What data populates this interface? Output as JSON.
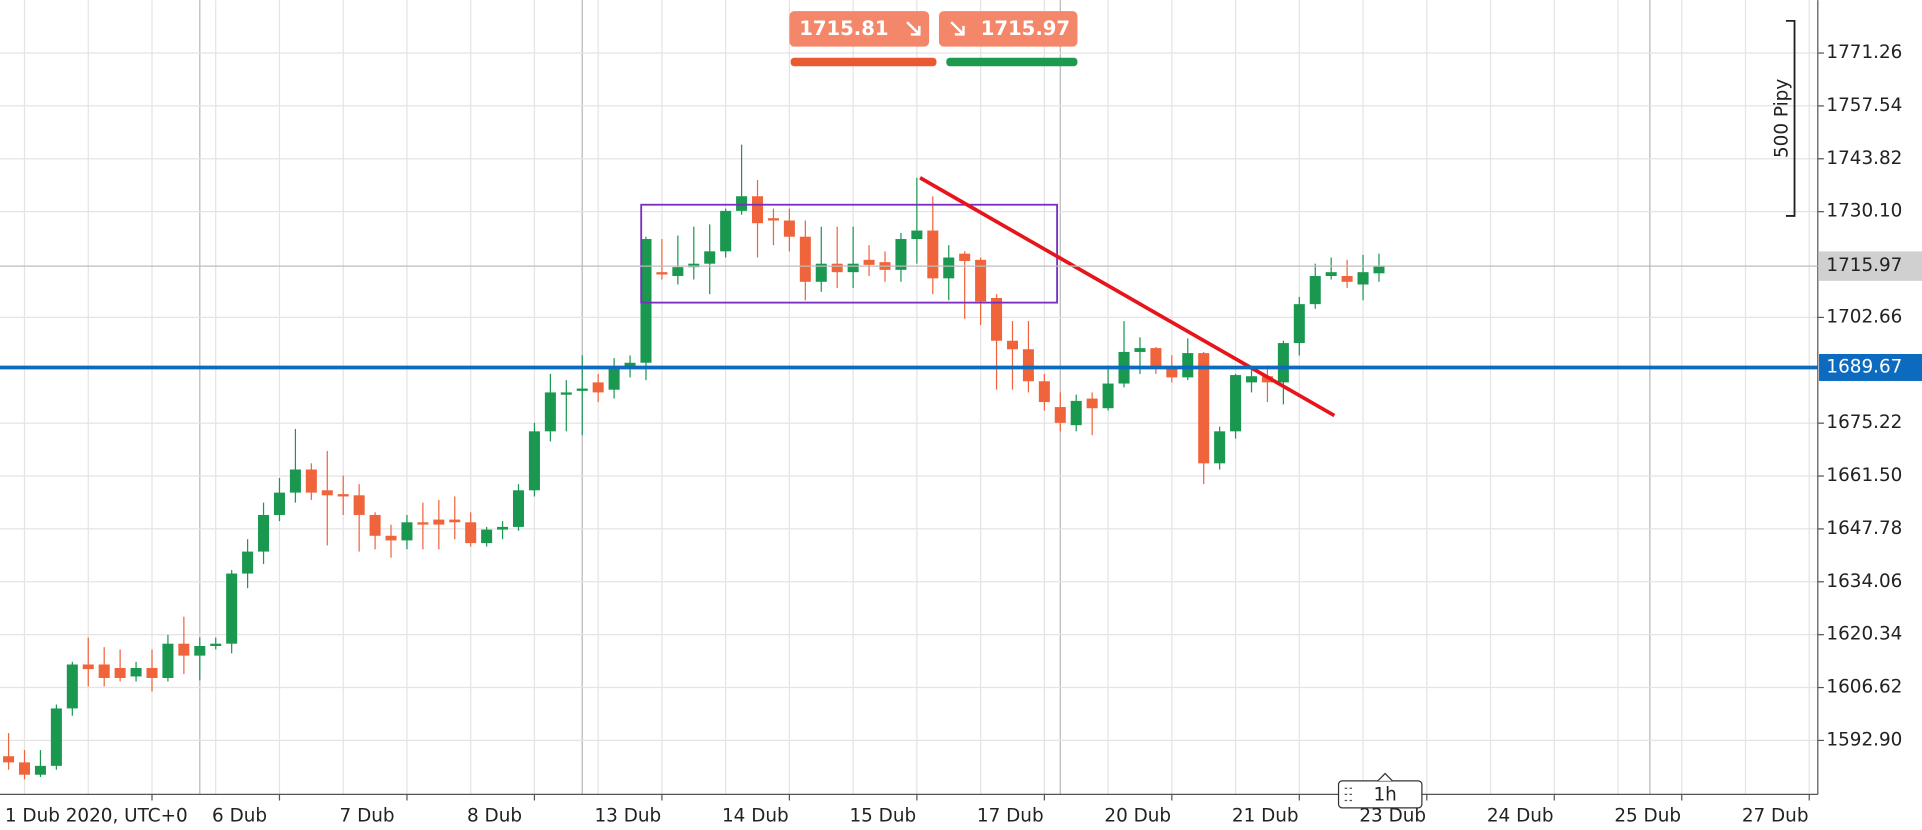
{
  "chart_data": {
    "type": "candlestick",
    "categories": [
      "1 Dub 2020, UTC+0",
      null,
      null,
      null,
      null,
      null,
      null,
      null,
      null,
      null,
      null,
      null,
      null,
      "6 Dub",
      null,
      null,
      null,
      null,
      null,
      null,
      null,
      "7 Dub",
      null,
      null,
      null,
      null,
      null,
      null,
      null,
      "8 Dub",
      null,
      null,
      null,
      null,
      null,
      null,
      null,
      "13 Dub",
      null,
      null,
      null,
      null,
      null,
      null,
      null,
      "14 Dub",
      null,
      null,
      null,
      null,
      null,
      null,
      null,
      "15 Dub",
      null,
      null,
      null,
      null,
      null,
      null,
      null,
      "17 Dub",
      null,
      null,
      null,
      null,
      null,
      null,
      null,
      "20 Dub",
      null,
      null,
      null,
      null,
      null,
      null,
      null,
      "21 Dub",
      null,
      null,
      null,
      null,
      null,
      null,
      null,
      "23 Dub",
      null,
      null,
      null,
      null,
      null,
      null,
      null,
      "24 Dub",
      null,
      null,
      null,
      null,
      null,
      null,
      null,
      "25 Dub",
      null,
      null,
      null,
      null,
      null,
      null,
      null,
      "27 Dub",
      null,
      null,
      null
    ],
    "values": [
      [
        1588.8,
        1594.8,
        1585.3,
        1587.2
      ],
      [
        1587.2,
        1590.4,
        1582.8,
        1584.0
      ],
      [
        1584.0,
        1590.4,
        1583.4,
        1586.3
      ],
      [
        1586.3,
        1602.2,
        1585.3,
        1601.2
      ],
      [
        1601.2,
        1613.3,
        1599.3,
        1612.6
      ],
      [
        1612.6,
        1619.6,
        1606.9,
        1611.4
      ],
      [
        1612.6,
        1617.1,
        1606.9,
        1609.1
      ],
      [
        1611.7,
        1616.5,
        1608.2,
        1609.1
      ],
      [
        1609.5,
        1613.3,
        1608.2,
        1611.7
      ],
      [
        1611.7,
        1616.5,
        1605.6,
        1609.1
      ],
      [
        1609.1,
        1620.3,
        1608.2,
        1618.0
      ],
      [
        1618.0,
        1625.0,
        1610.1,
        1614.9
      ],
      [
        1614.9,
        1619.6,
        1608.5,
        1617.4
      ],
      [
        1617.4,
        1619.6,
        1616.5,
        1618.0
      ],
      [
        1618.0,
        1637.1,
        1615.5,
        1636.2
      ],
      [
        1636.2,
        1645.1,
        1632.4,
        1641.9
      ],
      [
        1641.9,
        1654.6,
        1638.7,
        1651.4
      ],
      [
        1651.4,
        1661.0,
        1649.8,
        1657.2
      ],
      [
        1657.2,
        1673.7,
        1654.6,
        1663.2
      ],
      [
        1663.2,
        1664.8,
        1655.3,
        1657.2
      ],
      [
        1657.8,
        1668.0,
        1643.5,
        1656.5
      ],
      [
        1656.8,
        1661.6,
        1651.4,
        1656.2
      ],
      [
        1656.5,
        1659.4,
        1641.9,
        1651.4
      ],
      [
        1651.4,
        1652.1,
        1642.5,
        1646.0
      ],
      [
        1646.0,
        1648.9,
        1640.3,
        1644.8
      ],
      [
        1644.8,
        1651.4,
        1642.5,
        1649.5
      ],
      [
        1649.5,
        1654.6,
        1642.5,
        1648.9
      ],
      [
        1650.2,
        1655.3,
        1642.5,
        1648.9
      ],
      [
        1650.2,
        1656.2,
        1645.1,
        1649.5
      ],
      [
        1649.5,
        1652.1,
        1643.2,
        1644.1
      ],
      [
        1644.1,
        1648.3,
        1643.2,
        1647.6
      ],
      [
        1647.6,
        1649.8,
        1645.1,
        1648.3
      ],
      [
        1648.3,
        1659.4,
        1647.3,
        1657.8
      ],
      [
        1657.8,
        1675.3,
        1656.2,
        1673.1
      ],
      [
        1673.1,
        1688.0,
        1670.5,
        1683.2
      ],
      [
        1682.6,
        1686.4,
        1673.1,
        1683.2
      ],
      [
        1683.6,
        1692.8,
        1672.1,
        1684.2
      ],
      [
        1685.8,
        1688.0,
        1680.7,
        1683.2
      ],
      [
        1683.9,
        1692.1,
        1681.6,
        1689.6
      ],
      [
        1689.6,
        1692.8,
        1687.1,
        1690.9
      ],
      [
        1690.9,
        1723.6,
        1686.4,
        1723.0
      ],
      [
        1714.4,
        1723.0,
        1712.5,
        1713.8
      ],
      [
        1713.4,
        1723.9,
        1711.2,
        1715.7
      ],
      [
        1715.7,
        1726.2,
        1712.5,
        1716.6
      ],
      [
        1716.6,
        1726.8,
        1708.7,
        1719.8
      ],
      [
        1719.8,
        1730.9,
        1718.2,
        1730.3
      ],
      [
        1730.3,
        1747.5,
        1729.3,
        1734.1
      ],
      [
        1734.1,
        1738.3,
        1718.2,
        1727.1
      ],
      [
        1728.4,
        1730.9,
        1721.4,
        1727.8
      ],
      [
        1727.8,
        1730.9,
        1719.8,
        1723.6
      ],
      [
        1723.6,
        1727.8,
        1707.1,
        1711.9
      ],
      [
        1711.9,
        1726.2,
        1709.3,
        1716.6
      ],
      [
        1716.6,
        1726.2,
        1710.3,
        1714.4
      ],
      [
        1714.4,
        1726.2,
        1710.3,
        1716.6
      ],
      [
        1717.6,
        1721.4,
        1713.4,
        1716.3
      ],
      [
        1717.0,
        1719.8,
        1711.9,
        1715.0
      ],
      [
        1715.0,
        1724.6,
        1711.9,
        1723.0
      ],
      [
        1723.0,
        1738.9,
        1716.6,
        1725.2
      ],
      [
        1725.2,
        1734.1,
        1708.7,
        1712.8
      ],
      [
        1712.8,
        1721.4,
        1707.1,
        1718.2
      ],
      [
        1719.2,
        1719.8,
        1702.3,
        1717.3
      ],
      [
        1717.6,
        1718.2,
        1700.7,
        1706.8
      ],
      [
        1707.7,
        1708.7,
        1683.9,
        1696.6
      ],
      [
        1696.6,
        1701.7,
        1683.9,
        1694.4
      ],
      [
        1694.4,
        1701.7,
        1683.2,
        1686.1
      ],
      [
        1686.1,
        1688.0,
        1678.5,
        1680.7
      ],
      [
        1679.4,
        1683.2,
        1673.1,
        1675.3
      ],
      [
        1674.7,
        1682.6,
        1673.1,
        1681.0
      ],
      [
        1681.6,
        1683.2,
        1672.1,
        1679.1
      ],
      [
        1679.1,
        1690.2,
        1678.5,
        1685.5
      ],
      [
        1685.5,
        1701.7,
        1684.5,
        1693.7
      ],
      [
        1693.7,
        1697.5,
        1688.0,
        1694.7
      ],
      [
        1694.7,
        1695.0,
        1688.0,
        1689.6
      ],
      [
        1689.6,
        1692.8,
        1685.8,
        1687.1
      ],
      [
        1687.1,
        1697.2,
        1686.4,
        1693.4
      ],
      [
        1693.4,
        1693.7,
        1659.4,
        1664.8
      ],
      [
        1664.8,
        1674.3,
        1663.2,
        1673.1
      ],
      [
        1673.1,
        1688.0,
        1671.2,
        1687.7
      ],
      [
        1685.8,
        1689.6,
        1683.2,
        1687.4
      ],
      [
        1687.4,
        1690.2,
        1680.7,
        1685.8
      ],
      [
        1685.8,
        1696.6,
        1680.1,
        1696.0
      ],
      [
        1696.0,
        1708.0,
        1692.8,
        1706.1
      ],
      [
        1706.1,
        1716.6,
        1704.9,
        1713.4
      ],
      [
        1713.4,
        1718.2,
        1712.5,
        1714.4
      ],
      [
        1713.4,
        1717.6,
        1710.3,
        1711.9
      ],
      [
        1711.2,
        1718.9,
        1707.1,
        1714.4
      ],
      [
        1714.1,
        1719.2,
        1711.9,
        1716.0
      ],
      null,
      null,
      null,
      null,
      null,
      null,
      null,
      null,
      null,
      null,
      null,
      null,
      null,
      null,
      null,
      null,
      null,
      null,
      null,
      null,
      null,
      null,
      null,
      null,
      null,
      null
    ],
    "up_color": "#1a9850",
    "down_color": "#f0643c",
    "ylim": [
      1578.9,
      1785.0
    ],
    "yticks": [
      1771.26,
      1757.54,
      1743.82,
      {
        "value": 1730.1,
        "label": "1730.10"
      },
      1702.66,
      1675.22,
      {
        "value": 1661.5,
        "label": "1661.50"
      },
      1647.78,
      1634.06,
      1620.34,
      1606.62,
      {
        "value": 1592.9,
        "label": "1592.90"
      }
    ],
    "grid": true,
    "current_price": 1715.97,
    "level_line": {
      "value": 1689.67,
      "color": "#0d6bbf"
    },
    "box": {
      "x": [
        39.7,
        65.8
      ],
      "y": [
        1731.9,
        1706.5
      ],
      "color": "#7b2fbf"
    },
    "trend_line": {
      "x": [
        57.2,
        83.2
      ],
      "y": [
        1738.9,
        1677.2
      ],
      "color": "#e8141c"
    },
    "pip_ruler": {
      "label": "500 Pipy",
      "y": [
        1779.6,
        1729.0
      ]
    },
    "sell_price": 1715.81,
    "buy_price": 1715.97,
    "timeframe": "1h"
  }
}
